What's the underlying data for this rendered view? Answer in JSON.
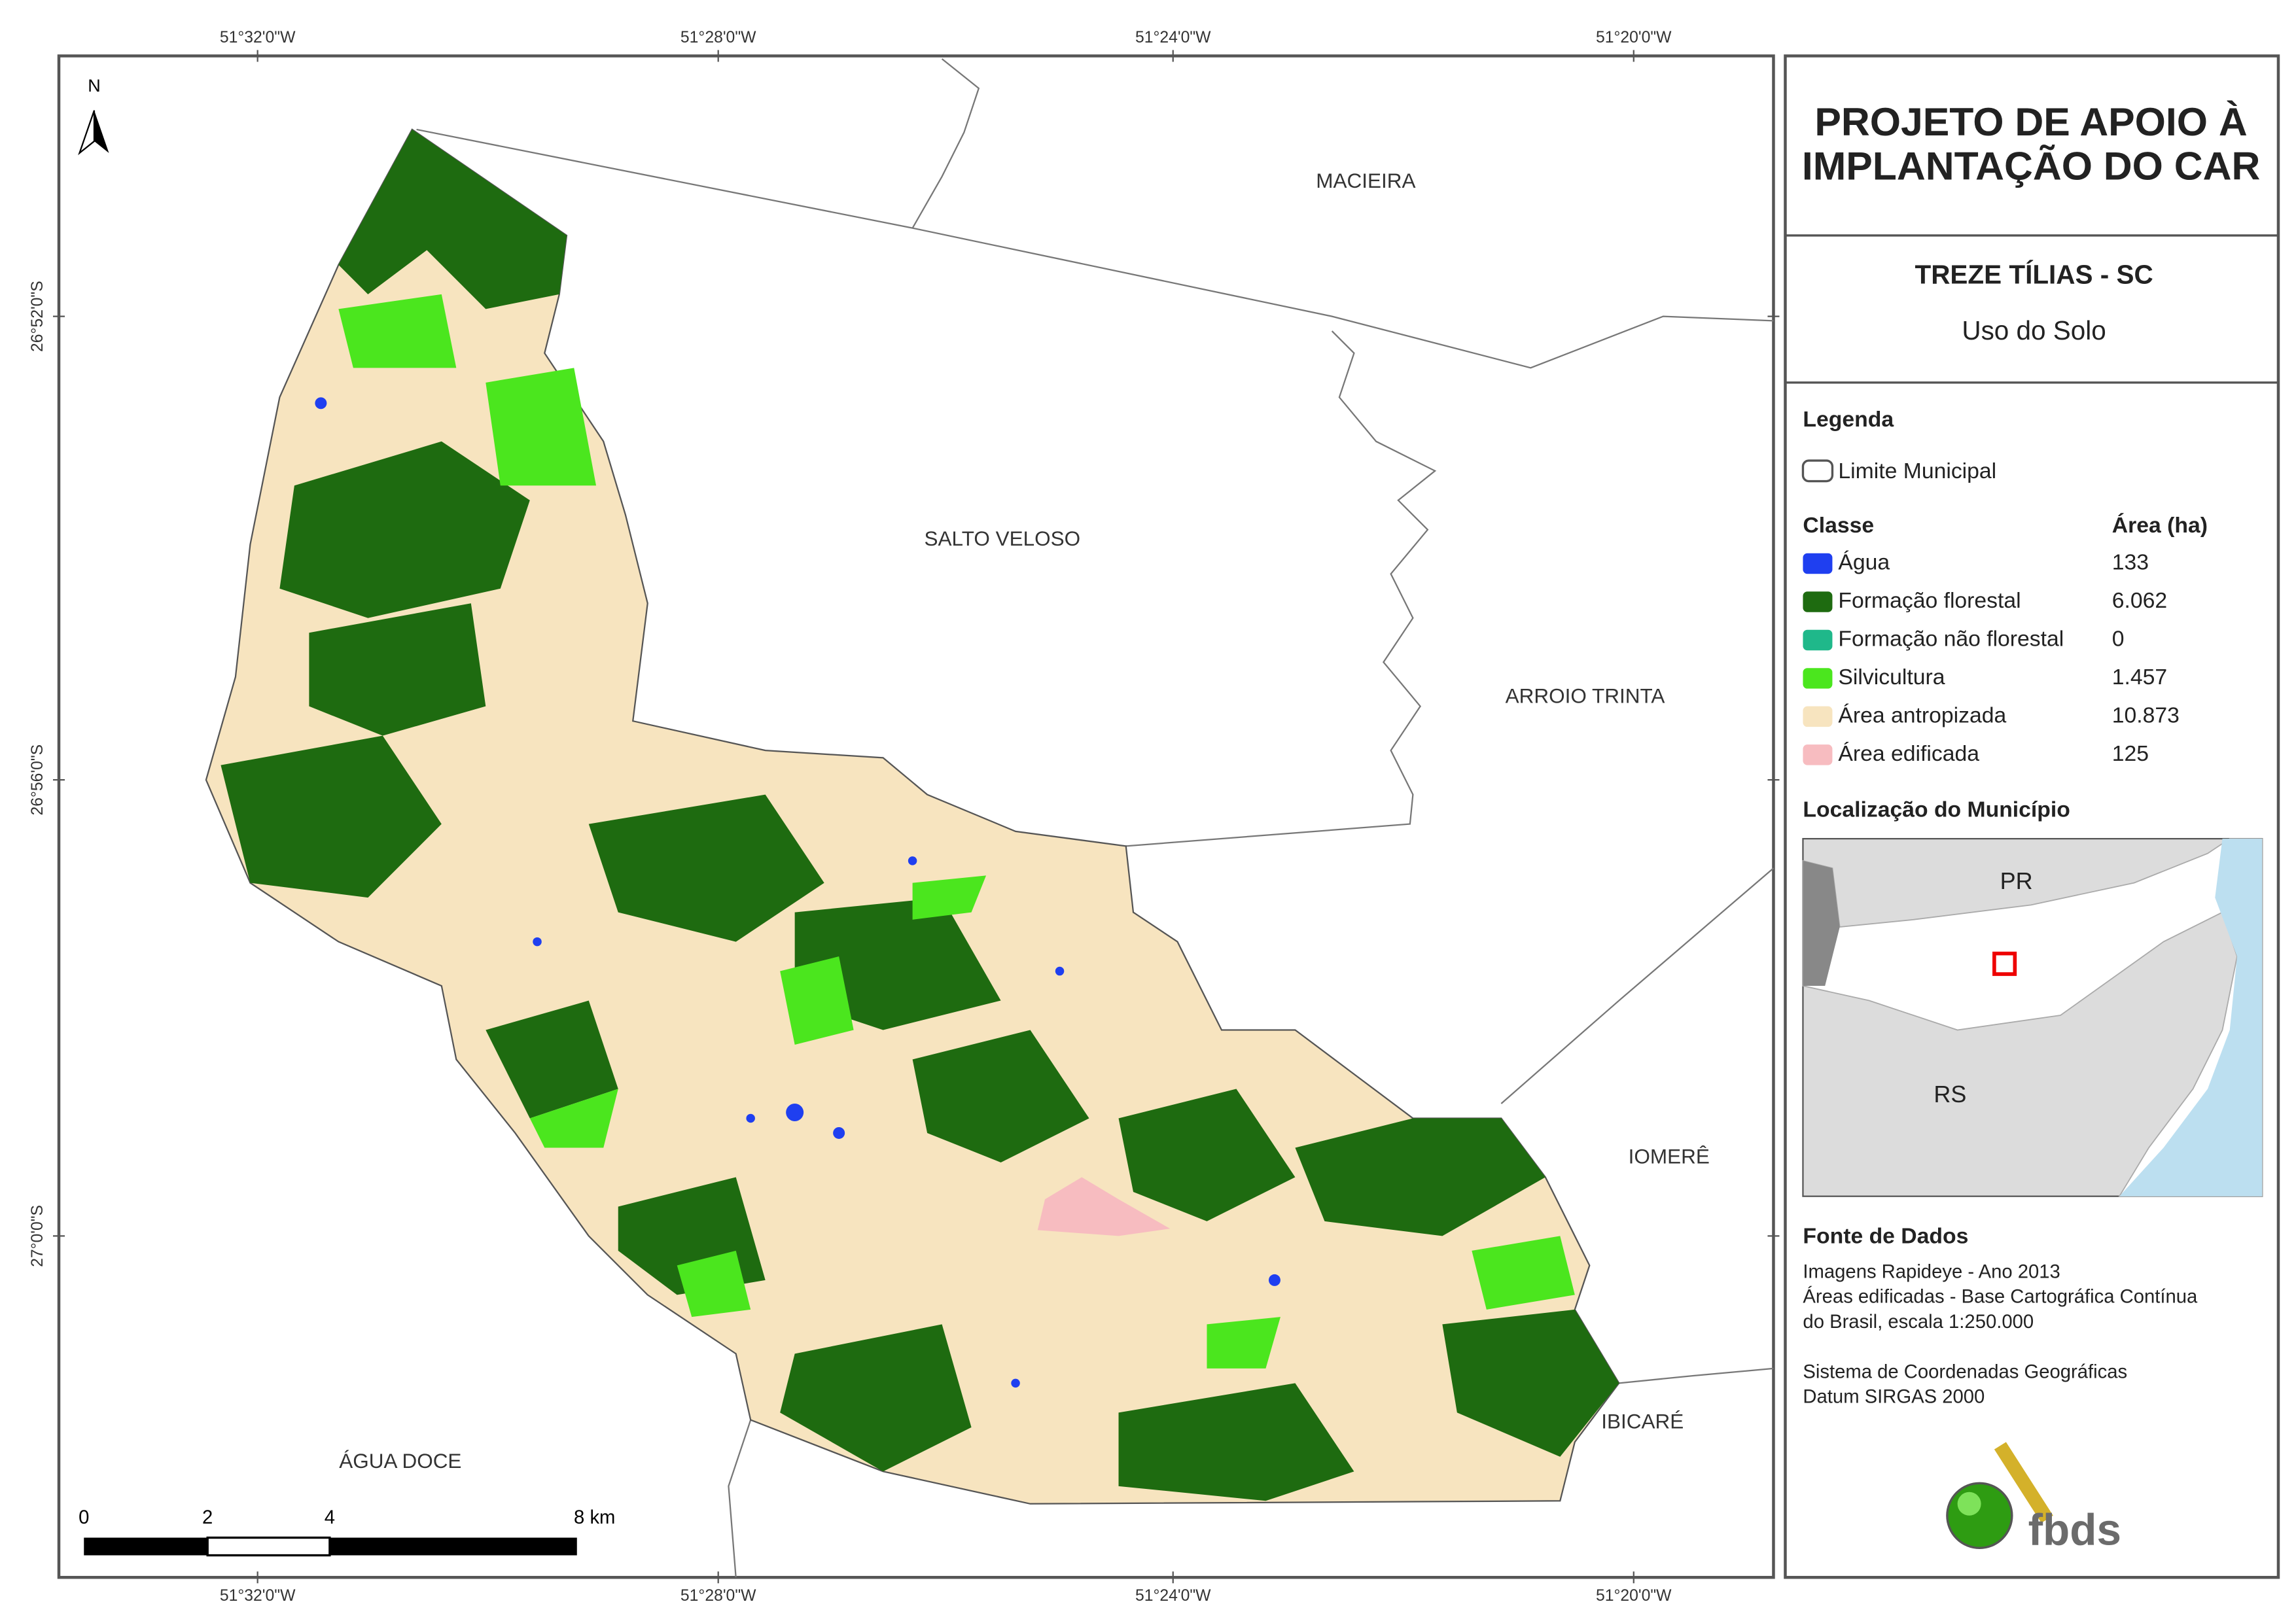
{
  "header": {
    "title_lines": [
      "PROJETO DE APOIO À",
      "IMPLANTAÇÃO DO CAR"
    ],
    "municipality": "TREZE TÍLIAS - SC",
    "theme": "Uso do Solo"
  },
  "coordinates": {
    "top": [
      "51°32'0\"W",
      "51°28'0\"W",
      "51°24'0\"W",
      "51°20'0\"W"
    ],
    "left": [
      "26°52'0\"S",
      "26°56'0\"S",
      "27°0'0\"S"
    ]
  },
  "neighbors": [
    "MACIEIRA",
    "SALTO VELOSO",
    "ARROIO TRINTA",
    "IOMERÊ",
    "IBICARÉ",
    "ÁGUA DOCE"
  ],
  "north": "N",
  "scale": [
    "0",
    "2",
    "4",
    "8 km"
  ],
  "legend": {
    "title": "Legenda",
    "boundary": "Limite Municipal",
    "class_header": "Classe",
    "area_header": "Área (ha)",
    "items": [
      {
        "name": "Água",
        "area": "133",
        "color": "#1f3ff0"
      },
      {
        "name": "Formação florestal",
        "area": "6.062",
        "color": "#1e6b10"
      },
      {
        "name": "Formação não florestal",
        "area": "0",
        "color": "#1fb88a"
      },
      {
        "name": "Silvicultura",
        "area": "1.457",
        "color": "#4be61e"
      },
      {
        "name": "Área antropizada",
        "area": "10.873",
        "color": "#f7e4bf"
      },
      {
        "name": "Área edificada",
        "area": "125",
        "color": "#f7bcc0"
      }
    ]
  },
  "location": {
    "title": "Localização do Município",
    "labels": [
      "PR",
      "RS"
    ]
  },
  "sources": {
    "title": "Fonte de Dados",
    "lines": [
      "Imagens Rapideye - Ano 2013",
      "Áreas edificadas - Base Cartográfica Contínua",
      "do Brasil, escala 1:250.000",
      "",
      "Sistema de Coordenadas Geográficas",
      "Datum SIRGAS 2000"
    ]
  },
  "logo": "fbds"
}
